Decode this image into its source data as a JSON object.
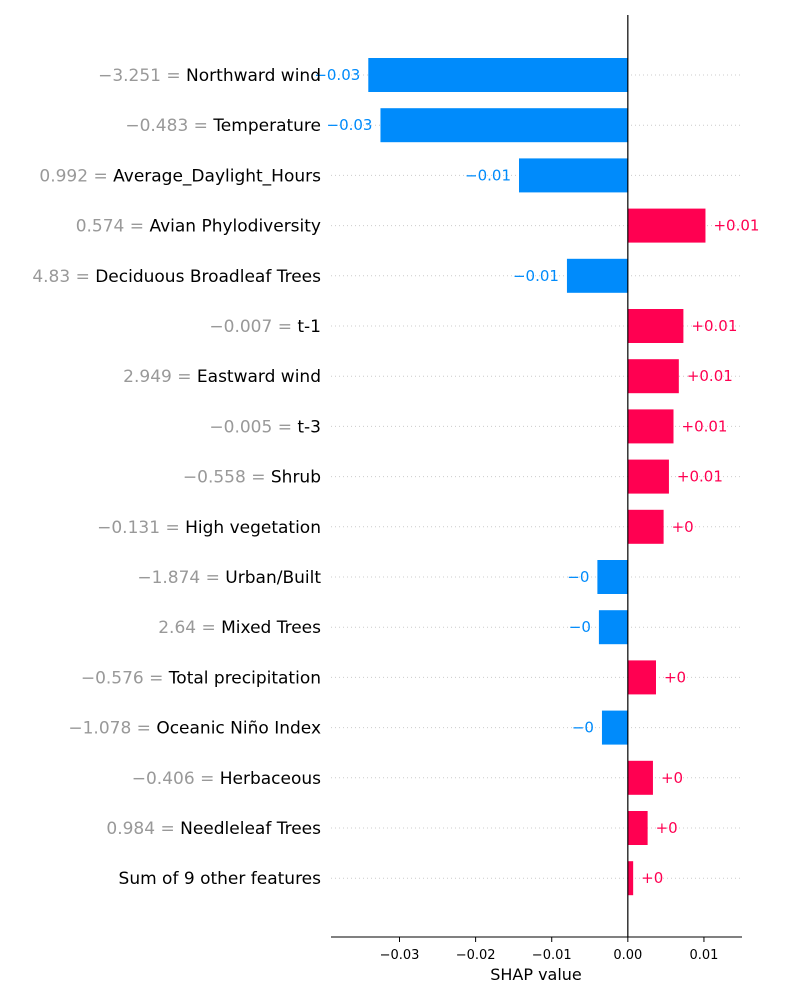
{
  "chart_data": {
    "type": "bar",
    "orientation": "horizontal",
    "title": "",
    "xlabel": "SHAP value",
    "ylabel": "",
    "xlim": [
      -0.039,
      0.015
    ],
    "xticks": [
      -0.03,
      -0.02,
      -0.01,
      0.0,
      0.01
    ],
    "xtick_labels": [
      "−0.03",
      "−0.02",
      "−0.01",
      "0.00",
      "0.01"
    ],
    "positive_color": "#ff0051",
    "negative_color": "#008bfb",
    "value_color": "#999999",
    "features": [
      {
        "value": "−3.251",
        "name": "Northward wind",
        "shap": -0.0341,
        "label": "−0.03"
      },
      {
        "value": "−0.483",
        "name": "Temperature",
        "shap": -0.0325,
        "label": "−0.03"
      },
      {
        "value": "0.992",
        "name": "Average_Daylight_Hours",
        "shap": -0.0143,
        "label": "−0.01"
      },
      {
        "value": "0.574",
        "name": "Avian Phylodiversity",
        "shap": 0.0102,
        "label": "+0.01"
      },
      {
        "value": "4.83",
        "name": "Deciduous Broadleaf Trees",
        "shap": -0.008,
        "label": "−0.01"
      },
      {
        "value": "−0.007",
        "name": "t-1",
        "shap": 0.0073,
        "label": "+0.01"
      },
      {
        "value": "2.949",
        "name": "Eastward wind",
        "shap": 0.0067,
        "label": "+0.01"
      },
      {
        "value": "−0.005",
        "name": "t-3",
        "shap": 0.006,
        "label": "+0.01"
      },
      {
        "value": "−0.558",
        "name": "Shrub",
        "shap": 0.0054,
        "label": "+0.01"
      },
      {
        "value": "−0.131",
        "name": "High vegetation",
        "shap": 0.0047,
        "label": "+0"
      },
      {
        "value": "−1.874",
        "name": "Urban/Built",
        "shap": -0.004,
        "label": "−0"
      },
      {
        "value": "2.64",
        "name": "Mixed Trees",
        "shap": -0.0038,
        "label": "−0"
      },
      {
        "value": "−0.576",
        "name": "Total precipitation",
        "shap": 0.0037,
        "label": "+0"
      },
      {
        "value": "−1.078",
        "name": "Oceanic Niño Index",
        "shap": -0.0034,
        "label": "−0"
      },
      {
        "value": "−0.406",
        "name": "Herbaceous",
        "shap": 0.0033,
        "label": "+0"
      },
      {
        "value": "0.984",
        "name": "Needleleaf Trees",
        "shap": 0.0026,
        "label": "+0"
      },
      {
        "value": "",
        "name": "Sum of 9 other features",
        "shap": 0.0007,
        "label": "+0"
      }
    ]
  }
}
